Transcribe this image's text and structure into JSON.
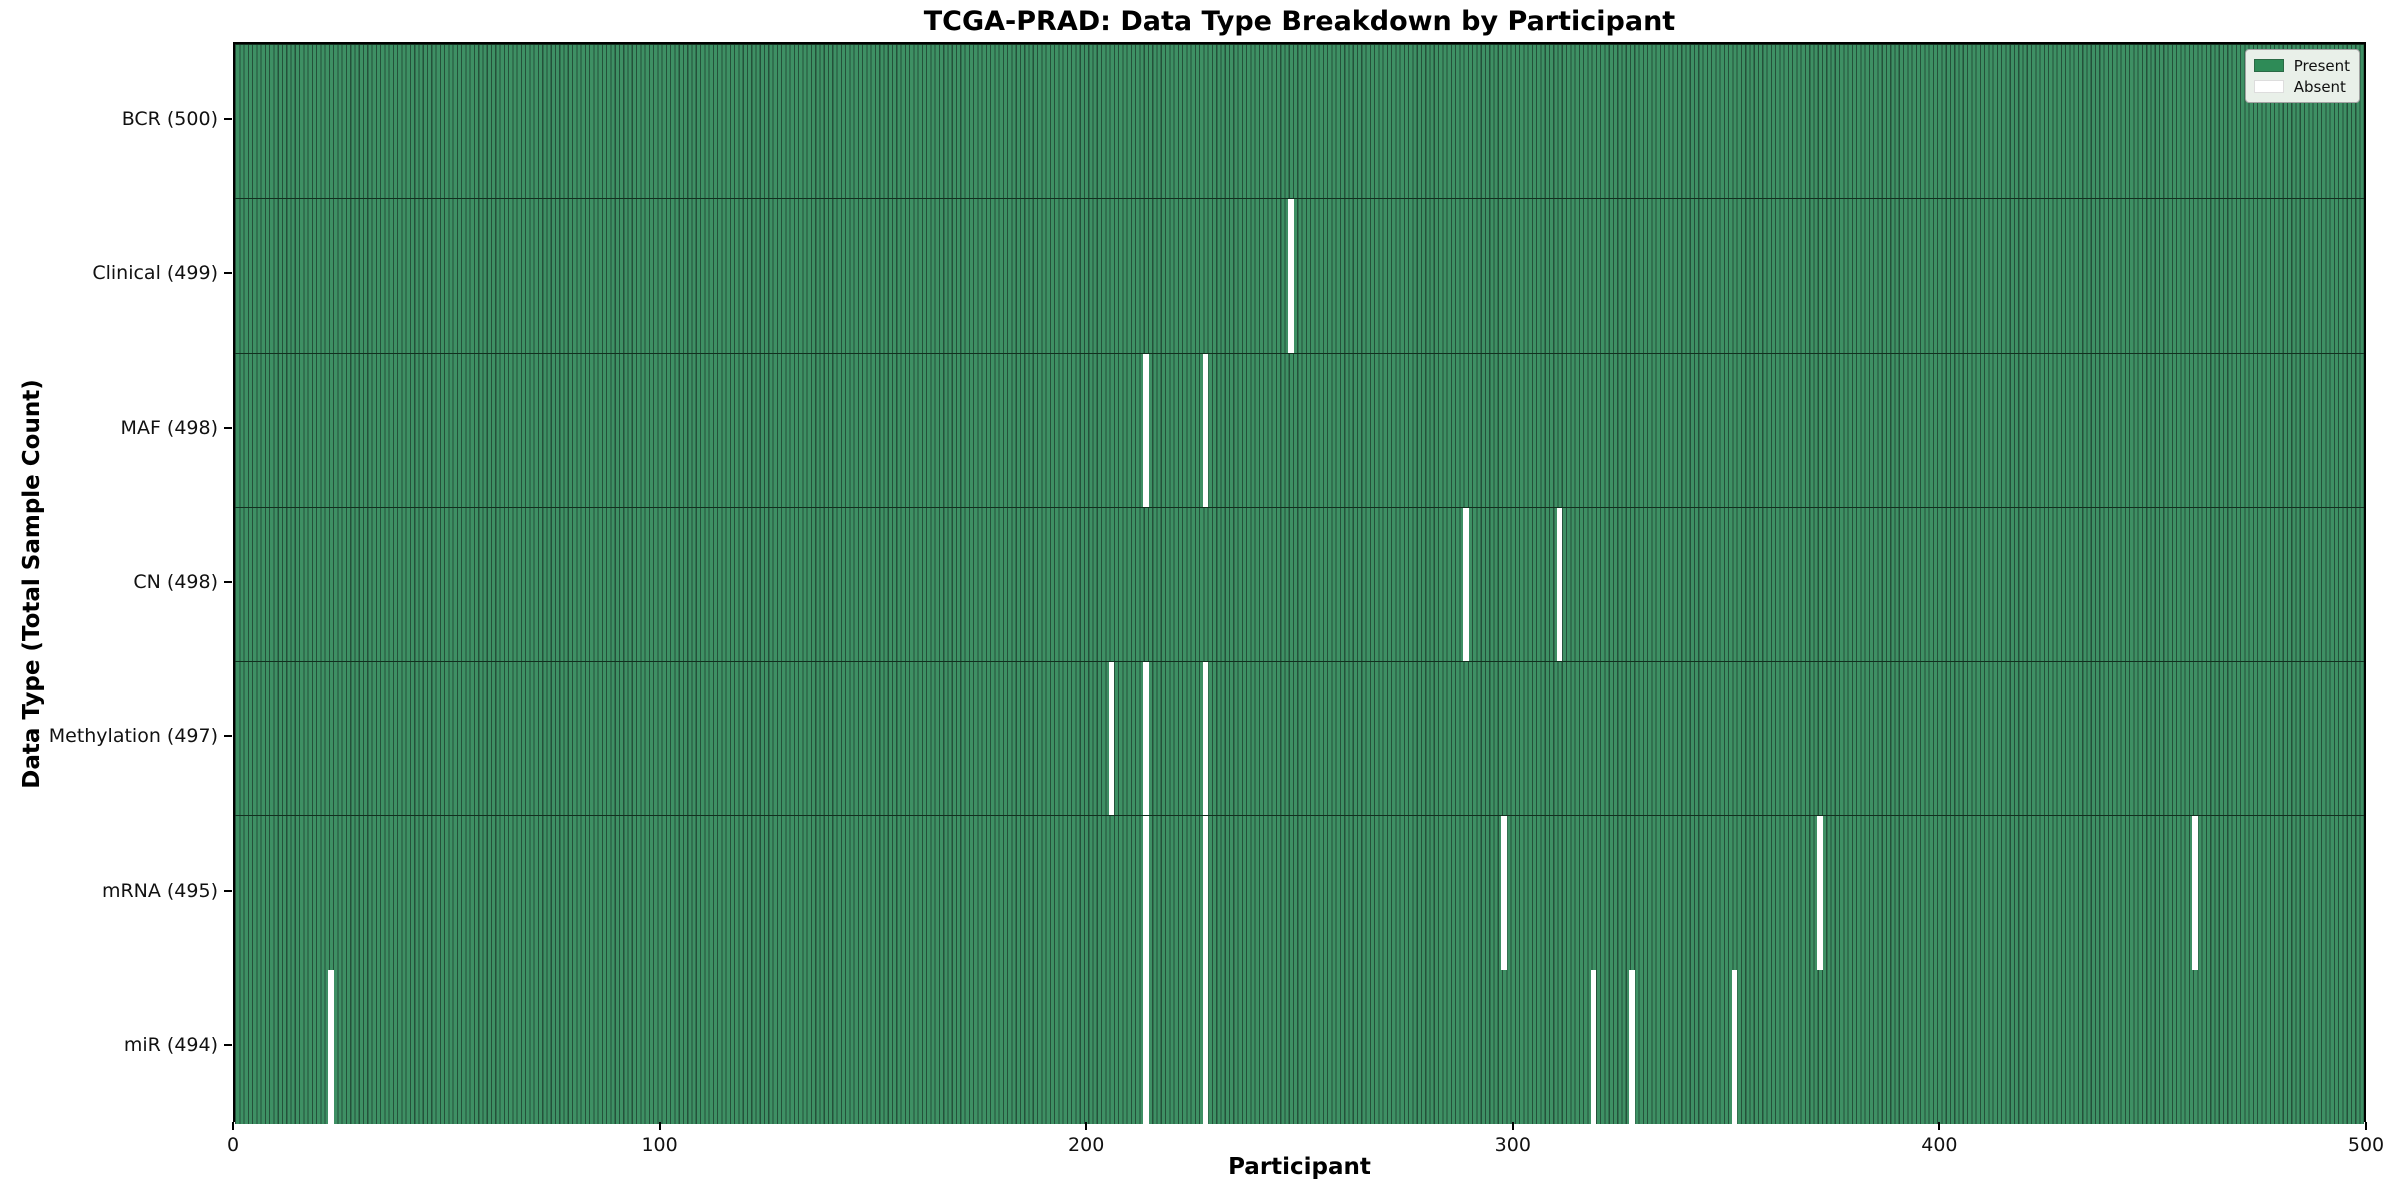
{
  "figure": {
    "title": "TCGA-PRAD: Data Type Breakdown by Participant",
    "xlabel": "Participant",
    "ylabel": "Data Type (Total Sample Count)"
  },
  "legend": {
    "items": [
      {
        "label": "Present",
        "color": "#2e8b57"
      },
      {
        "label": "Absent",
        "color": "#ffffff"
      }
    ]
  },
  "chart_data": {
    "type": "heatmap",
    "title": "TCGA-PRAD: Data Type Breakdown by Participant",
    "xlabel": "Participant",
    "ylabel": "Data Type (Total Sample Count)",
    "x_range": [
      0,
      500
    ],
    "x_ticks": [
      0,
      100,
      200,
      300,
      400,
      500
    ],
    "n_participants": 500,
    "legend_position": "upper right",
    "grid": false,
    "colors": {
      "present_fill": "#3e9064",
      "present_edge": "#24513a",
      "row_divider": "#12301f",
      "absent": "#ffffff",
      "legend_present_swatch": "#2e8b57"
    },
    "rows": [
      {
        "label": "BCR (500)",
        "name": "BCR",
        "total_samples": 500,
        "absent_participants": []
      },
      {
        "label": "Clinical (499)",
        "name": "Clinical",
        "total_samples": 499,
        "absent_participants": [
          247
        ]
      },
      {
        "label": "MAF (498)",
        "name": "MAF",
        "total_samples": 498,
        "absent_participants": [
          213,
          227
        ]
      },
      {
        "label": "CN (498)",
        "name": "CN",
        "total_samples": 498,
        "absent_participants": [
          288,
          310
        ]
      },
      {
        "label": "Methylation (497)",
        "name": "Methylation",
        "total_samples": 497,
        "absent_participants": [
          205,
          213,
          227
        ]
      },
      {
        "label": "mRNA (495)",
        "name": "mRNA",
        "total_samples": 495,
        "absent_participants": [
          213,
          227,
          297,
          371,
          459
        ]
      },
      {
        "label": "miR (494)",
        "name": "miR",
        "total_samples": 494,
        "absent_participants": [
          22,
          213,
          227,
          318,
          327,
          351
        ]
      }
    ]
  }
}
